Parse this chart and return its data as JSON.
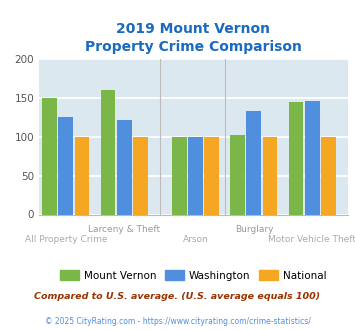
{
  "title_line1": "2019 Mount Vernon",
  "title_line2": "Property Crime Comparison",
  "categories": [
    "All Property Crime",
    "Larceny & Theft",
    "Arson",
    "Burglary",
    "Motor Vehicle Theft"
  ],
  "series": {
    "Mount Vernon": [
      150,
      160,
      100,
      102,
      145
    ],
    "Washington": [
      126,
      122,
      100,
      133,
      147
    ],
    "National": [
      100,
      100,
      100,
      100,
      100
    ]
  },
  "colors": {
    "Mount Vernon": "#7ab648",
    "Washington": "#4f8fde",
    "National": "#f5a623"
  },
  "ylim": [
    0,
    200
  ],
  "yticks": [
    0,
    50,
    100,
    150,
    200
  ],
  "plot_bg": "#dce8f0",
  "fig_bg": "#ffffff",
  "title_color": "#1a6abf",
  "upper_xlabel_color": "#999999",
  "lower_xlabel_color": "#aaaaaa",
  "footnote1": "Compared to U.S. average. (U.S. average equals 100)",
  "footnote2": "© 2025 CityRating.com - https://www.cityrating.com/crime-statistics/",
  "footnote1_color": "#993300",
  "footnote2_color": "#4f8fde",
  "grid_color": "#ffffff",
  "bar_width": 0.18,
  "group_centers": [
    0.3,
    0.95,
    1.75,
    2.4,
    3.05
  ]
}
